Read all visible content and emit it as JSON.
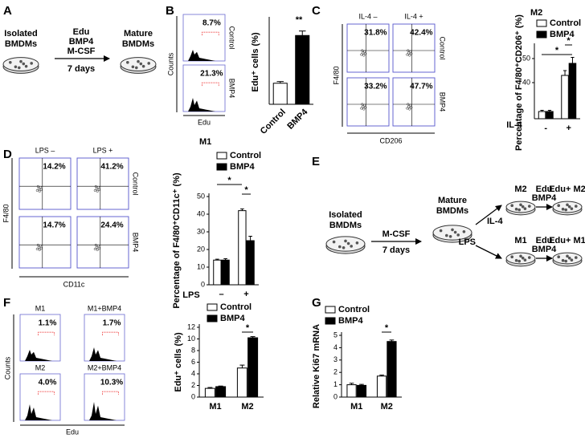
{
  "panel_labels": [
    "A",
    "B",
    "C",
    "D",
    "E",
    "F",
    "G"
  ],
  "diagram_a": {
    "start": [
      "Isolated",
      "BMDMs"
    ],
    "steps": [
      "Edu",
      "BMP4",
      "M-CSF"
    ],
    "duration": "7 days",
    "end": [
      "Mature",
      "BMDMs"
    ]
  },
  "flow_b": {
    "y_label": "Counts",
    "x_label": "Edu",
    "samples": [
      {
        "label": "Control",
        "percent": "8.7%"
      },
      {
        "label": "BMP4",
        "percent": "21.3%"
      }
    ]
  },
  "flow_c": {
    "y_label": "F4/80",
    "x_label": "CD206",
    "columns": [
      "IL-4 –",
      "IL-4 +"
    ],
    "rows": [
      "Control",
      "BMP4"
    ],
    "percents": [
      [
        "31.8%",
        "42.4%"
      ],
      [
        "33.2%",
        "47.7%"
      ]
    ]
  },
  "flow_d": {
    "y_label": "F4/80",
    "x_label": "CD11c",
    "columns": [
      "LPS –",
      "LPS +"
    ],
    "rows": [
      "Control",
      "BMP4"
    ],
    "percents": [
      [
        "14.2%",
        "41.2%"
      ],
      [
        "14.7%",
        "24.4%"
      ]
    ]
  },
  "diagram_e": {
    "start": [
      "Isolated",
      "BMDMs"
    ],
    "treatment": "M-CSF",
    "duration": "7 days",
    "mature": [
      "Mature",
      "BMDMs"
    ],
    "branches": [
      {
        "stimulus": "IL-4",
        "type": "M2",
        "steps": [
          "Edu",
          "BMP4"
        ],
        "result": "Edu+ M2"
      },
      {
        "stimulus": "LPS",
        "type": "M1",
        "steps": [
          "Edu",
          "BMP4"
        ],
        "result": "Edu+ M1"
      }
    ]
  },
  "flow_f": {
    "y_label": "Counts",
    "x_label": "Edu",
    "samples": [
      {
        "label": "M1",
        "percent": "1.1%"
      },
      {
        "label": "M1+BMP4",
        "percent": "1.7%"
      },
      {
        "label": "M2",
        "percent": "4.0%"
      },
      {
        "label": "M2+BMP4",
        "percent": "10.3%"
      }
    ]
  },
  "chart_data": [
    {
      "type": "bar",
      "y_label": "Edu⁺ cells (%)",
      "categories": [
        "Control",
        "BMP4"
      ],
      "values": [
        7.5,
        24.5
      ],
      "errors": [
        0.6,
        1.6
      ],
      "colors": [
        "#ffffff",
        "#000000"
      ],
      "ylim": [
        0,
        30
      ],
      "annotations": [
        "**"
      ]
    },
    {
      "type": "bar",
      "title": "M2",
      "x_label": "IL-4",
      "y_label": "Percentage of F4/80⁺CD206⁺ (%)",
      "categories": [
        "-",
        "+"
      ],
      "series": [
        {
          "name": "Control",
          "color": "#ffffff",
          "values": [
            28,
            43
          ],
          "errors": [
            0.5,
            2
          ]
        },
        {
          "name": "BMP4",
          "color": "#000000",
          "values": [
            28,
            48
          ],
          "errors": [
            0.5,
            2.5
          ]
        }
      ],
      "ylim": [
        25,
        55
      ],
      "yticks": [
        40,
        50
      ],
      "annotations": [
        "*",
        "*"
      ]
    },
    {
      "type": "bar",
      "title": "M1",
      "x_label": "LPS",
      "y_label": "Percentage of F4/80⁺CD11c⁺ (%)",
      "categories": [
        "–",
        "+"
      ],
      "series": [
        {
          "name": "Control",
          "color": "#ffffff",
          "values": [
            14,
            42
          ],
          "errors": [
            0.5,
            1
          ]
        },
        {
          "name": "BMP4",
          "color": "#000000",
          "values": [
            14,
            25
          ],
          "errors": [
            0.8,
            2.5
          ]
        }
      ],
      "ylim": [
        0,
        50
      ],
      "yticks": [
        0,
        10,
        20,
        30,
        40,
        50
      ],
      "annotations": [
        "*",
        "*"
      ]
    },
    {
      "type": "bar",
      "y_label": "Edu⁺ cells (%)",
      "categories": [
        "M1",
        "M2"
      ],
      "series": [
        {
          "name": "Control",
          "color": "#ffffff",
          "values": [
            1.5,
            5.0
          ],
          "errors": [
            0.15,
            0.5
          ]
        },
        {
          "name": "BMP4",
          "color": "#000000",
          "values": [
            1.8,
            10.2
          ],
          "errors": [
            0.1,
            0.2
          ]
        }
      ],
      "ylim": [
        0,
        12
      ],
      "yticks": [
        0,
        2,
        4,
        6,
        8,
        10,
        12
      ],
      "annotations": [
        "*"
      ]
    },
    {
      "type": "bar",
      "y_label": "Relative Ki67 mRNA",
      "categories": [
        "M1",
        "M2"
      ],
      "series": [
        {
          "name": "Control",
          "color": "#ffffff",
          "values": [
            1.0,
            1.7
          ],
          "errors": [
            0.12,
            0.08
          ]
        },
        {
          "name": "BMP4",
          "color": "#000000",
          "values": [
            0.95,
            4.5
          ],
          "errors": [
            0.08,
            0.12
          ]
        }
      ],
      "ylim": [
        0,
        5
      ],
      "yticks": [
        0,
        1,
        2,
        3,
        4,
        5
      ],
      "annotations": [
        "*"
      ]
    }
  ]
}
